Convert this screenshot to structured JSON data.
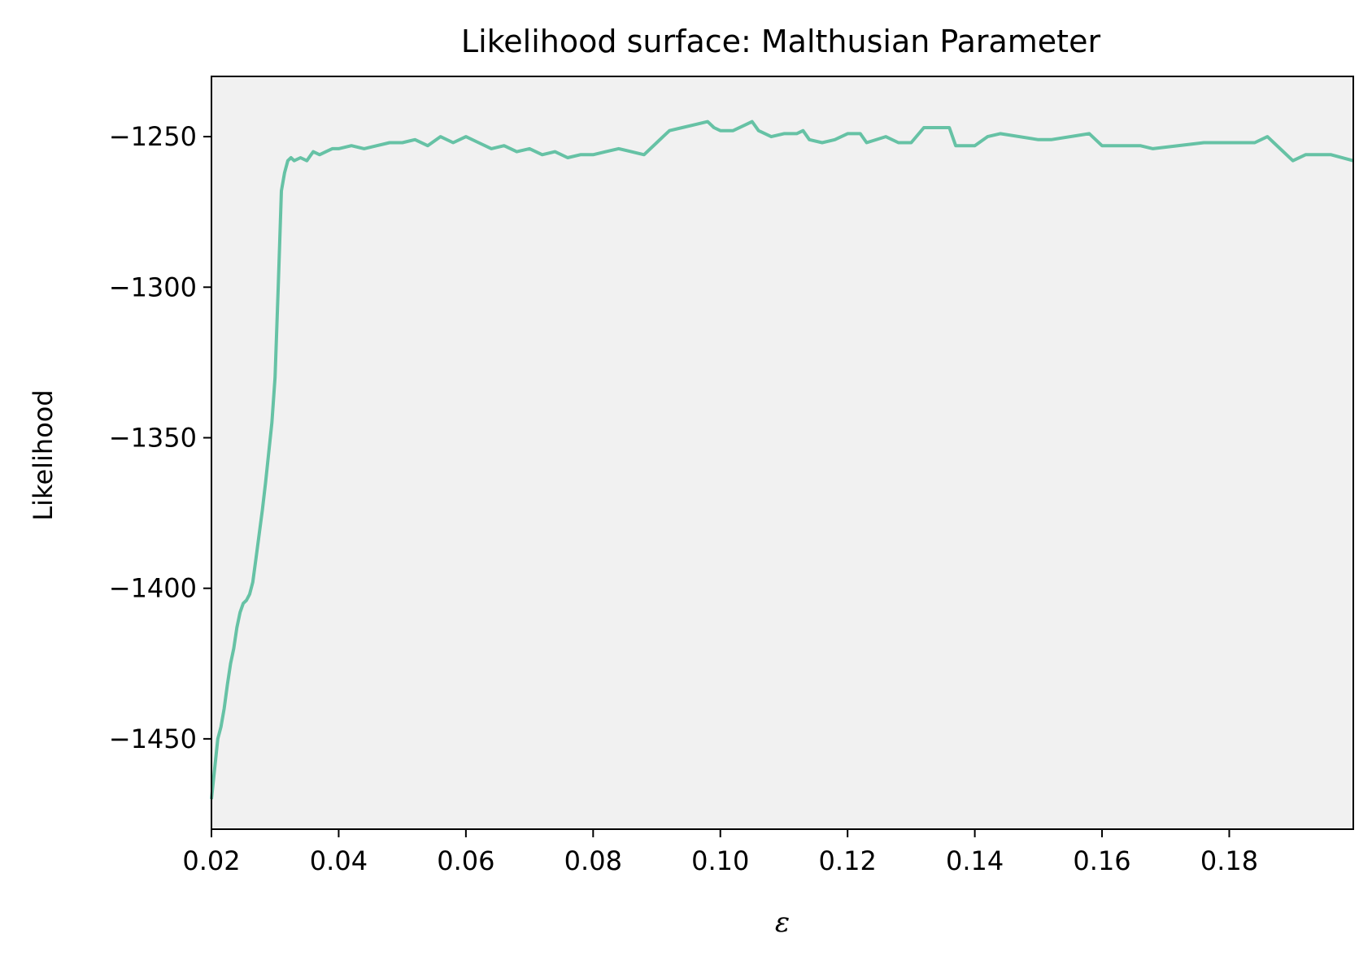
{
  "chart_data": {
    "type": "line",
    "title": "Likelihood surface: Malthusian Parameter",
    "xlabel": "ε",
    "ylabel": "Likelihood",
    "xlim": [
      0.02,
      0.1995
    ],
    "ylim": [
      -1480,
      -1230
    ],
    "x_ticks": [
      0.02,
      0.04,
      0.06,
      0.08,
      0.1,
      0.12,
      0.14,
      0.16,
      0.18
    ],
    "x_tick_labels": [
      "0.02",
      "0.04",
      "0.06",
      "0.08",
      "0.10",
      "0.12",
      "0.14",
      "0.16",
      "0.18"
    ],
    "y_ticks": [
      -1250,
      -1300,
      -1350,
      -1400,
      -1450
    ],
    "y_tick_labels": [
      "−1250",
      "−1300",
      "−1350",
      "−1400",
      "−1450"
    ],
    "grid": false,
    "colors": {
      "line": "#66c2a5",
      "plot_bg": "#f1f1f1",
      "axes": "#000000"
    },
    "series": [
      {
        "x": [
          0.02,
          0.0205,
          0.021,
          0.0215,
          0.022,
          0.0225,
          0.023,
          0.0235,
          0.024,
          0.0245,
          0.025,
          0.0255,
          0.026,
          0.0265,
          0.027,
          0.0275,
          0.028,
          0.0285,
          0.029,
          0.0295,
          0.03,
          0.0305,
          0.031,
          0.0315,
          0.032,
          0.0325,
          0.033,
          0.034,
          0.035,
          0.036,
          0.037,
          0.038,
          0.039,
          0.04,
          0.042,
          0.044,
          0.046,
          0.048,
          0.05,
          0.052,
          0.054,
          0.056,
          0.058,
          0.06,
          0.062,
          0.064,
          0.066,
          0.068,
          0.07,
          0.072,
          0.074,
          0.076,
          0.078,
          0.08,
          0.082,
          0.084,
          0.086,
          0.088,
          0.09,
          0.091,
          0.092,
          0.094,
          0.096,
          0.098,
          0.099,
          0.1,
          0.102,
          0.104,
          0.105,
          0.106,
          0.108,
          0.11,
          0.112,
          0.113,
          0.114,
          0.116,
          0.118,
          0.12,
          0.122,
          0.123,
          0.126,
          0.128,
          0.13,
          0.132,
          0.136,
          0.137,
          0.14,
          0.142,
          0.144,
          0.15,
          0.152,
          0.158,
          0.16,
          0.166,
          0.168,
          0.176,
          0.184,
          0.186,
          0.187,
          0.19,
          0.192,
          0.196,
          0.1995
        ],
        "y": [
          -1470,
          -1460,
          -1450,
          -1446,
          -1440,
          -1432,
          -1425,
          -1420,
          -1413,
          -1408,
          -1405,
          -1404,
          -1402,
          -1398,
          -1390,
          -1382,
          -1374,
          -1365,
          -1355,
          -1345,
          -1330,
          -1300,
          -1268,
          -1262,
          -1258,
          -1257,
          -1258,
          -1257,
          -1258,
          -1255,
          -1256,
          -1255,
          -1254,
          -1254,
          -1253,
          -1254,
          -1253,
          -1252,
          -1252,
          -1251,
          -1253,
          -1250,
          -1252,
          -1250,
          -1252,
          -1254,
          -1253,
          -1255,
          -1254,
          -1256,
          -1255,
          -1257,
          -1256,
          -1256,
          -1255,
          -1254,
          -1255,
          -1256,
          -1252,
          -1250,
          -1248,
          -1247,
          -1246,
          -1245,
          -1247,
          -1248,
          -1248,
          -1246,
          -1245,
          -1248,
          -1250,
          -1249,
          -1249,
          -1248,
          -1251,
          -1252,
          -1251,
          -1249,
          -1249,
          -1252,
          -1250,
          -1252,
          -1252,
          -1247,
          -1247,
          -1253,
          -1253,
          -1250,
          -1249,
          -1251,
          -1251,
          -1249,
          -1253,
          -1253,
          -1254,
          -1252,
          -1252,
          -1250,
          -1252,
          -1258,
          -1256,
          -1256,
          -1258
        ]
      }
    ]
  }
}
